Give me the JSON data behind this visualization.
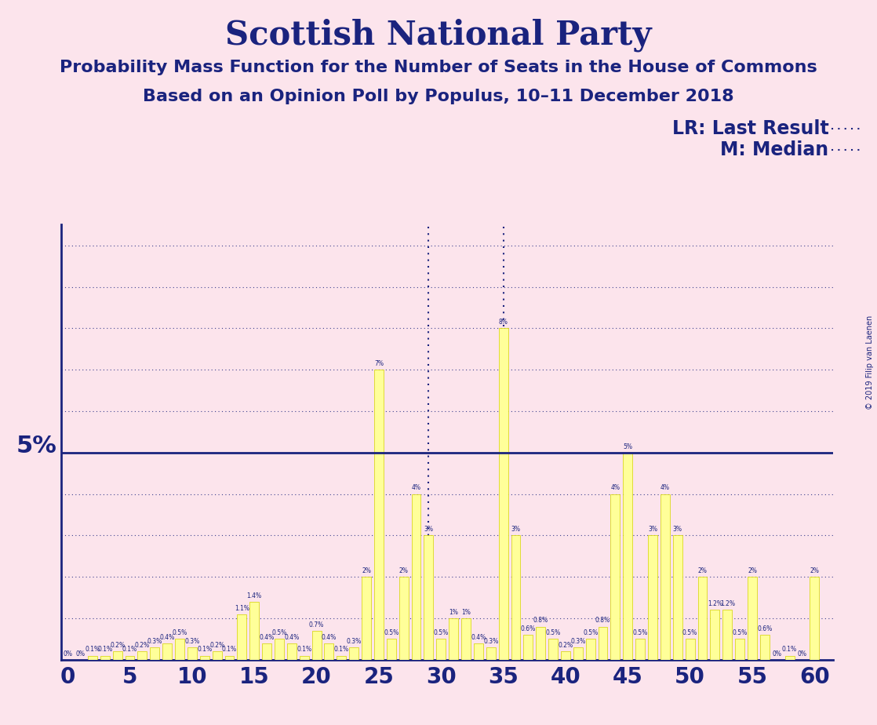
{
  "title": "Scottish National Party",
  "subtitle1": "Probability Mass Function for the Number of Seats in the House of Commons",
  "subtitle2": "Based on an Opinion Poll by Populus, 10–11 December 2018",
  "copyright": "© 2019 Filip van Laenen",
  "background_color": "#fce4ec",
  "bar_color": "#ffff99",
  "bar_edge_color": "#d4d400",
  "dark_blue": "#1a237e",
  "threshold_line": 5.0,
  "lr_seat": 29,
  "median_seat": 35,
  "xlim": [
    -0.5,
    61.5
  ],
  "ylim": [
    0,
    10.5
  ],
  "seats": [
    0,
    1,
    2,
    3,
    4,
    5,
    6,
    7,
    8,
    9,
    10,
    11,
    12,
    13,
    14,
    15,
    16,
    17,
    18,
    19,
    20,
    21,
    22,
    23,
    24,
    25,
    26,
    27,
    28,
    29,
    30,
    31,
    32,
    33,
    34,
    35,
    36,
    37,
    38,
    39,
    40,
    41,
    42,
    43,
    44,
    45,
    46,
    47,
    48,
    49,
    50,
    51,
    52,
    53,
    54,
    55,
    56,
    57,
    58,
    59,
    60
  ],
  "probs": [
    0.0,
    0.0,
    0.1,
    0.1,
    0.2,
    0.1,
    0.2,
    0.3,
    0.4,
    0.5,
    0.3,
    0.1,
    0.2,
    0.1,
    1.1,
    1.4,
    0.4,
    0.5,
    0.4,
    0.1,
    0.7,
    0.4,
    0.1,
    0.3,
    2.0,
    7.0,
    0.5,
    2.0,
    4.0,
    3.0,
    0.5,
    1.0,
    1.0,
    0.4,
    0.3,
    8.0,
    3.0,
    0.6,
    0.8,
    0.5,
    0.2,
    0.3,
    0.5,
    0.8,
    4.0,
    5.0,
    0.5,
    3.0,
    4.0,
    3.0,
    0.5,
    2.0,
    1.2,
    1.2,
    0.5,
    2.0,
    0.6,
    0.0,
    0.1,
    0.0,
    2.0
  ],
  "title_fontsize": 30,
  "subtitle_fontsize": 16,
  "tick_fontsize": 20,
  "label_fontsize": 5.5,
  "threshold_label_fontsize": 22,
  "legend_fontsize": 17,
  "copyright_fontsize": 7,
  "grid_levels": [
    1,
    2,
    3,
    4,
    6,
    7,
    8,
    9,
    10
  ]
}
